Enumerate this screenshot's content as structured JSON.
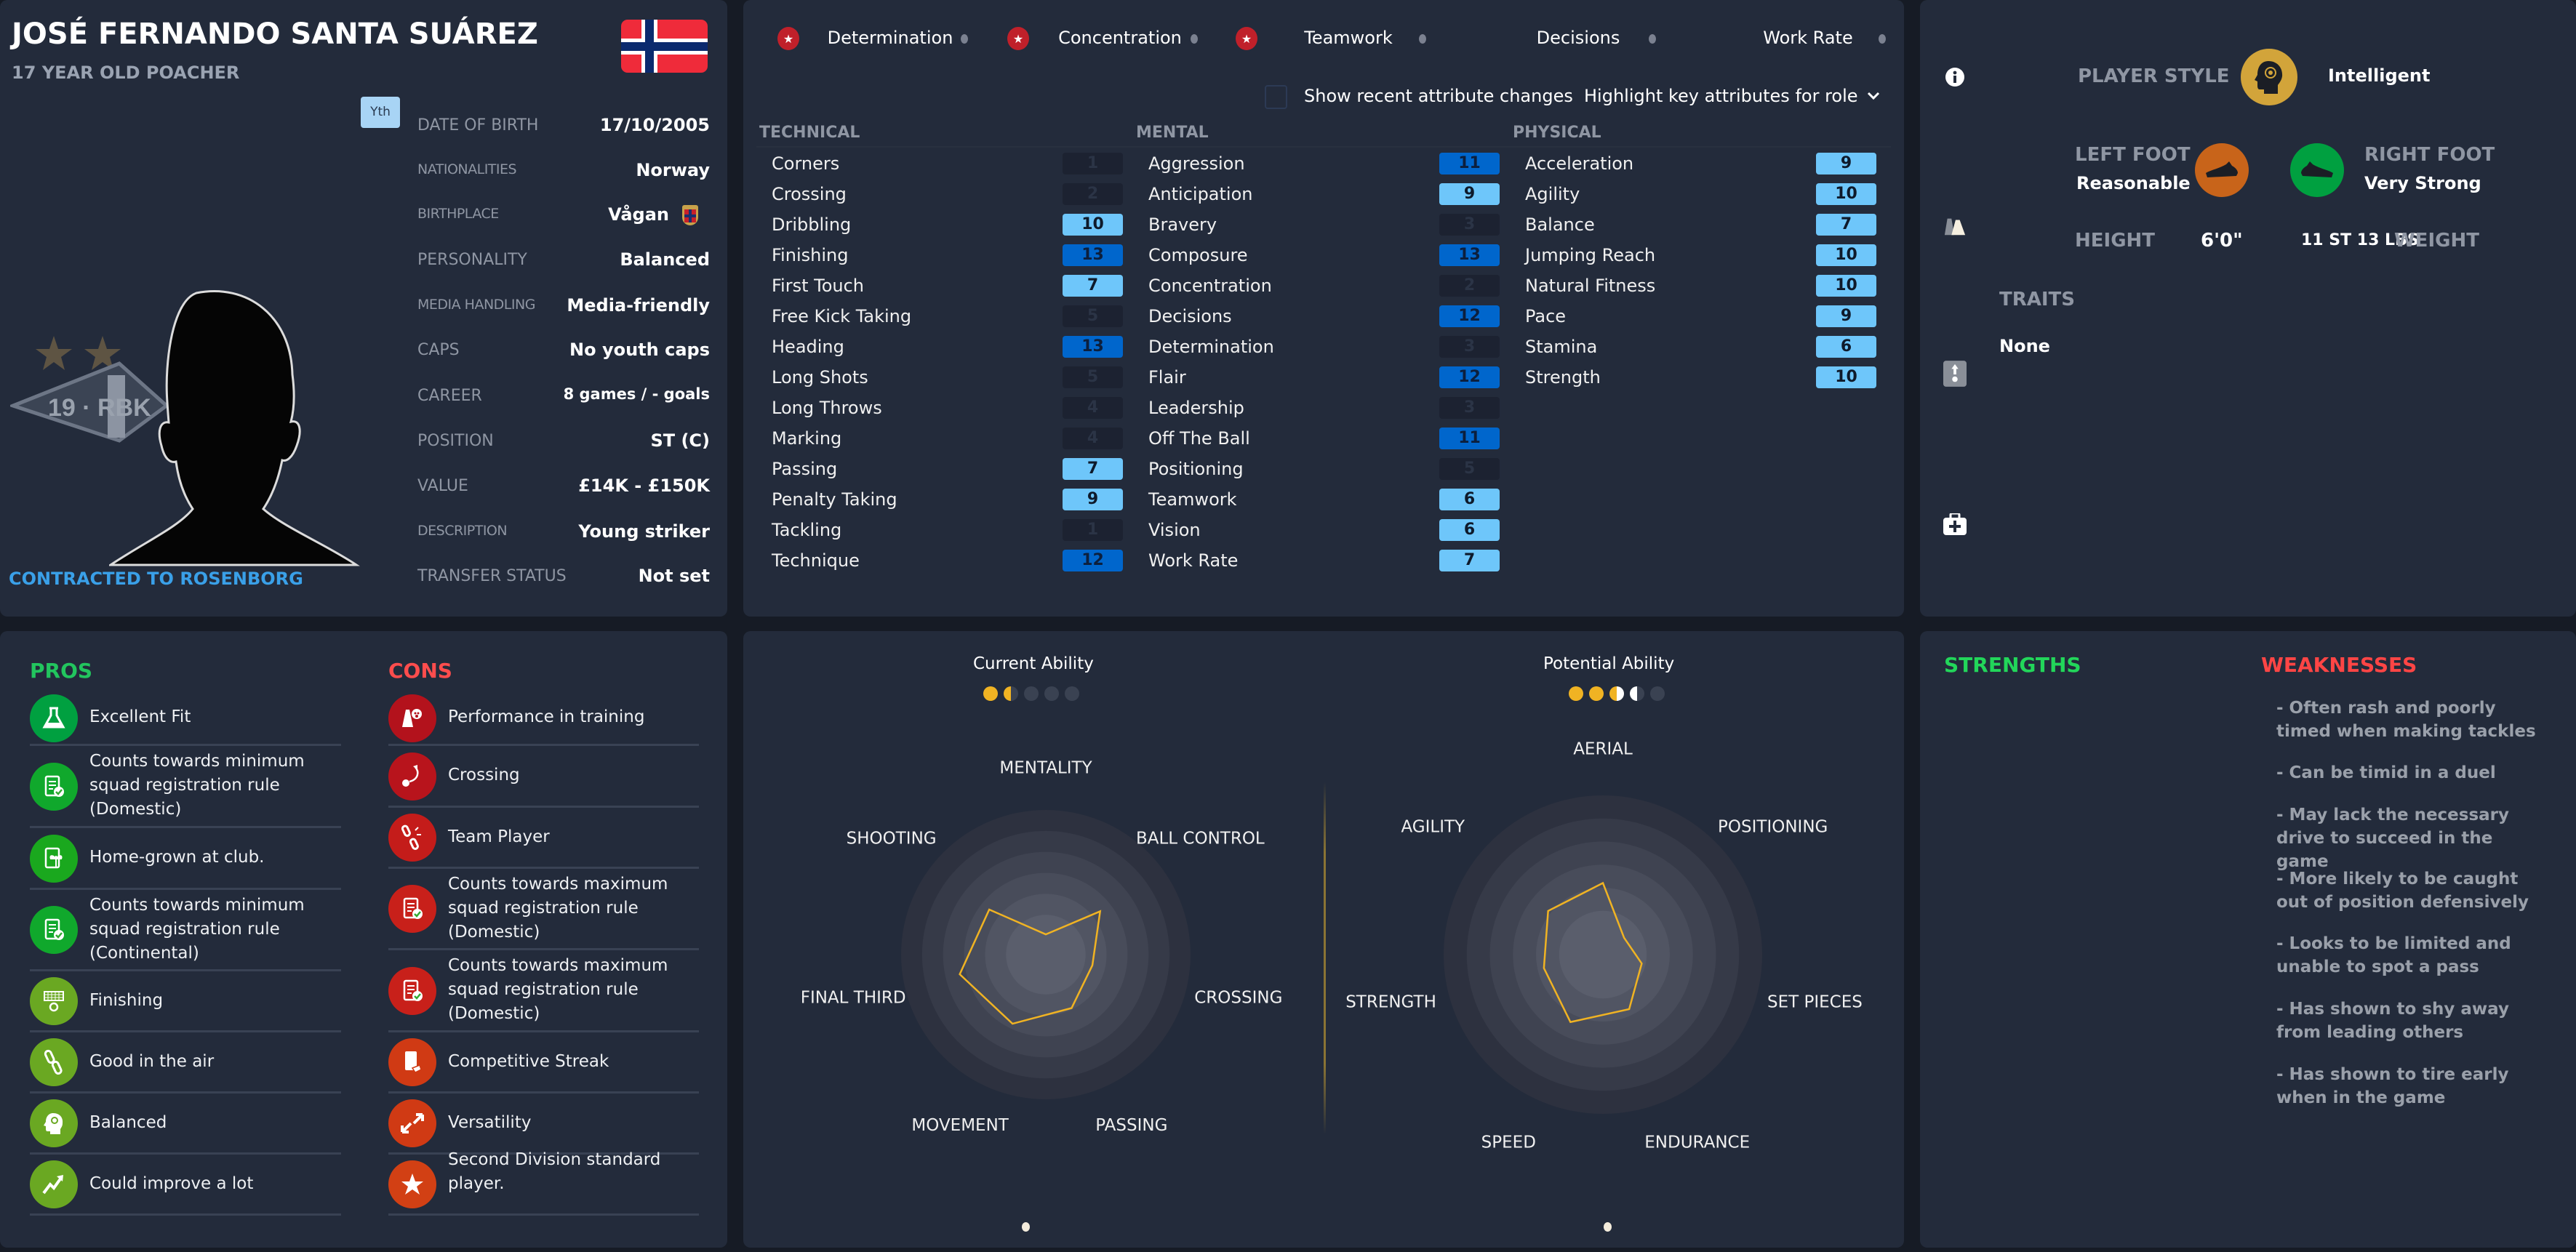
{
  "player": {
    "name": "JOSÉ FERNANDO SANTA SUÁREZ",
    "subtitle": "17 YEAR OLD POACHER",
    "squad_badge": "Yth",
    "club_badge_text": "19 · RBK",
    "contract": "CONTRACTED TO ROSENBORG",
    "info": [
      {
        "label": "DATE OF BIRTH",
        "value": "17/10/2005"
      },
      {
        "label": "NATIONALITIES",
        "value": "Norway"
      },
      {
        "label": "BIRTHPLACE",
        "value": "Vågan"
      },
      {
        "label": "PERSONALITY",
        "value": "Balanced"
      },
      {
        "label": "MEDIA HANDLING",
        "value": "Media-friendly"
      },
      {
        "label": "CAPS",
        "value": "No youth caps"
      },
      {
        "label": "CAREER",
        "value": "8  games /      - goals"
      },
      {
        "label": "POSITION",
        "value": "ST (C)"
      },
      {
        "label": "VALUE",
        "value": "£14K - £150K"
      },
      {
        "label": "DESCRIPTION",
        "value": "Young striker"
      },
      {
        "label": "TRANSFER STATUS",
        "value": "Not set"
      }
    ]
  },
  "key_attributes": [
    {
      "label": "Determination",
      "starred": true
    },
    {
      "label": "Concentration",
      "starred": true
    },
    {
      "label": "Teamwork",
      "starred": true
    },
    {
      "label": "Decisions",
      "starred": false
    },
    {
      "label": "Work Rate",
      "starred": false
    }
  ],
  "controls": {
    "show_changes_label": "Show recent attribute changes",
    "show_changes_checked": false,
    "highlight_label": "Highlight key attributes for role"
  },
  "attributes": [
    {
      "group": "TECHNICAL",
      "items": [
        {
          "name": "Corners",
          "value": 1
        },
        {
          "name": "Crossing",
          "value": 2
        },
        {
          "name": "Dribbling",
          "value": 10
        },
        {
          "name": "Finishing",
          "value": 13
        },
        {
          "name": "First Touch",
          "value": 7
        },
        {
          "name": "Free Kick Taking",
          "value": 5
        },
        {
          "name": "Heading",
          "value": 13
        },
        {
          "name": "Long Shots",
          "value": 5
        },
        {
          "name": "Long Throws",
          "value": 4
        },
        {
          "name": "Marking",
          "value": 4
        },
        {
          "name": "Passing",
          "value": 7
        },
        {
          "name": "Penalty Taking",
          "value": 9
        },
        {
          "name": "Tackling",
          "value": 1
        },
        {
          "name": "Technique",
          "value": 12
        }
      ]
    },
    {
      "group": "MENTAL",
      "items": [
        {
          "name": "Aggression",
          "value": 11
        },
        {
          "name": "Anticipation",
          "value": 9
        },
        {
          "name": "Bravery",
          "value": 3
        },
        {
          "name": "Composure",
          "value": 13
        },
        {
          "name": "Concentration",
          "value": 2
        },
        {
          "name": "Decisions",
          "value": 12
        },
        {
          "name": "Determination",
          "value": 3
        },
        {
          "name": "Flair",
          "value": 12
        },
        {
          "name": "Leadership",
          "value": 3
        },
        {
          "name": "Off The Ball",
          "value": 11
        },
        {
          "name": "Positioning",
          "value": 5
        },
        {
          "name": "Teamwork",
          "value": 6
        },
        {
          "name": "Vision",
          "value": 6
        },
        {
          "name": "Work Rate",
          "value": 7
        }
      ]
    },
    {
      "group": "PHYSICAL",
      "items": [
        {
          "name": "Acceleration",
          "value": 9
        },
        {
          "name": "Agility",
          "value": 10
        },
        {
          "name": "Balance",
          "value": 7
        },
        {
          "name": "Jumping Reach",
          "value": 10
        },
        {
          "name": "Natural Fitness",
          "value": 10
        },
        {
          "name": "Pace",
          "value": 9
        },
        {
          "name": "Stamina",
          "value": 6
        },
        {
          "name": "Strength",
          "value": 10
        }
      ]
    }
  ],
  "colors": {
    "attr_high": "#0066cc",
    "attr_mid": "#6ec6fa",
    "attr_low": "#1c2231",
    "accent": "#f0b323",
    "pros": "#22c55e",
    "cons": "#ff4d4d"
  },
  "profile": {
    "player_style_label": "PLAYER STYLE",
    "player_style_value": "Intelligent",
    "left_foot_label": "LEFT FOOT",
    "left_foot_value": "Reasonable",
    "right_foot_label": "RIGHT FOOT",
    "right_foot_value": "Very Strong",
    "height_label": "HEIGHT",
    "height_value": "6'0\"",
    "weight_value": "11 ST 13 LBS",
    "weight_label": "WEIGHT",
    "traits_label": "TRAITS",
    "traits_value": "None"
  },
  "pros": {
    "title": "PROS",
    "items": [
      {
        "text": "Excellent Fit",
        "icon": "flask-icon",
        "color": "#00a040"
      },
      {
        "text": "Counts towards minimum squad registration rule (Domestic)",
        "icon": "registration-icon",
        "color": "#10a82c"
      },
      {
        "text": "Home-grown at club.",
        "icon": "homegrown-icon",
        "color": "#1aa81e"
      },
      {
        "text": "Counts towards minimum squad registration rule (Continental)",
        "icon": "registration-icon",
        "color": "#10a82c"
      },
      {
        "text": "Finishing",
        "icon": "goal-icon",
        "color": "#6aa822"
      },
      {
        "text": "Good in the air",
        "icon": "chain-icon",
        "color": "#6aa822"
      },
      {
        "text": "Balanced",
        "icon": "head-icon",
        "color": "#6aa822"
      },
      {
        "text": "Could improve a lot",
        "icon": "trend-up-icon",
        "color": "#6aa822"
      }
    ]
  },
  "cons": {
    "title": "CONS",
    "items": [
      {
        "text": "Performance in training",
        "icon": "training-cone-icon",
        "color": "#b3121c"
      },
      {
        "text": "Crossing",
        "icon": "cross-ball-icon",
        "color": "#b8141c"
      },
      {
        "text": "Team Player",
        "icon": "broken-chain-icon",
        "color": "#c41c1a"
      },
      {
        "text": "Counts towards maximum squad registration rule (Domestic)",
        "icon": "registration-icon",
        "color": "#c8201a"
      },
      {
        "text": "Counts towards maximum squad registration rule (Domestic)",
        "icon": "registration-icon",
        "color": "#c8201a"
      },
      {
        "text": "Competitive Streak",
        "icon": "card-icon",
        "color": "#d03a14"
      },
      {
        "text": "Versatility",
        "icon": "arrows-icon",
        "color": "#d03a14"
      },
      {
        "text": "Second Division standard player.",
        "icon": "star-icon",
        "color": "#d24014"
      }
    ]
  },
  "ability": {
    "current_label": "Current Ability",
    "current_stars": [
      "full",
      "half",
      "empty",
      "empty",
      "empty"
    ],
    "potential_label": "Potential Ability",
    "potential_stars": [
      "full",
      "full",
      "half-gold",
      "half-white",
      "empty"
    ]
  },
  "chart_data": [
    {
      "type": "radar",
      "title": "Current Ability",
      "axes": [
        "MENTALITY",
        "BALL CONTROL",
        "CROSSING",
        "PASSING",
        "MOVEMENT",
        "FINAL THIRD",
        "SHOOTING"
      ],
      "values": [
        0.14,
        0.48,
        0.33,
        0.41,
        0.53,
        0.61,
        0.5
      ],
      "range": [
        0,
        1
      ]
    },
    {
      "type": "radar",
      "title": "Potential Ability",
      "axes": [
        "AERIAL",
        "POSITIONING",
        "SET PIECES",
        "ENDURANCE",
        "SPEED",
        "STRENGTH",
        "AGILITY"
      ],
      "values": [
        0.45,
        0.17,
        0.25,
        0.38,
        0.47,
        0.38,
        0.44
      ],
      "range": [
        0,
        1
      ]
    }
  ],
  "strengths": {
    "title": "STRENGTHS",
    "items": []
  },
  "weaknesses": {
    "title": "WEAKNESSES",
    "items": [
      "- Often rash and poorly timed when making tackles",
      "- Can be timid in a duel",
      "- May lack the necessary drive to succeed in the game",
      "- More likely to be caught out of position defensively",
      "- Looks to be limited and unable to spot a pass",
      "- Has shown to shy away from leading others",
      "- Has shown to tire early when in the game"
    ]
  }
}
